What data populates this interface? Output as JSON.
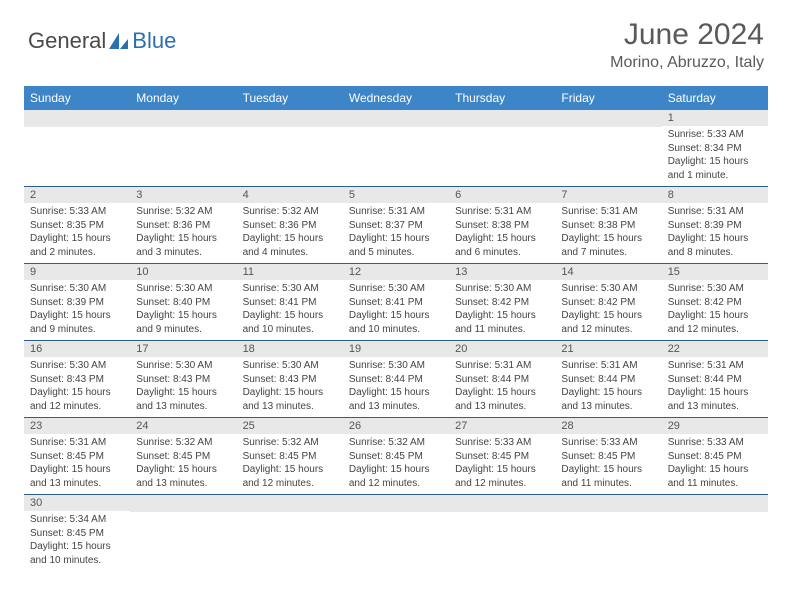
{
  "brand": {
    "part1": "General",
    "part2": "Blue"
  },
  "title": "June 2024",
  "location": "Morino, Abruzzo, Italy",
  "colors": {
    "header_bg": "#3d85c6",
    "header_text": "#ffffff",
    "daynum_bg": "#e8e8e8",
    "row_divider": "#2b5d8f",
    "body_text": "#444444",
    "title_text": "#5a5a5a",
    "logo_gray": "#4a4a4a",
    "logo_blue": "#2b6fb0",
    "sail_fill": "#2b6fb0"
  },
  "day_headers": [
    "Sunday",
    "Monday",
    "Tuesday",
    "Wednesday",
    "Thursday",
    "Friday",
    "Saturday"
  ],
  "weeks": [
    [
      null,
      null,
      null,
      null,
      null,
      null,
      {
        "n": "1",
        "sunrise": "Sunrise: 5:33 AM",
        "sunset": "Sunset: 8:34 PM",
        "daylight": "Daylight: 15 hours and 1 minute."
      }
    ],
    [
      {
        "n": "2",
        "sunrise": "Sunrise: 5:33 AM",
        "sunset": "Sunset: 8:35 PM",
        "daylight": "Daylight: 15 hours and 2 minutes."
      },
      {
        "n": "3",
        "sunrise": "Sunrise: 5:32 AM",
        "sunset": "Sunset: 8:36 PM",
        "daylight": "Daylight: 15 hours and 3 minutes."
      },
      {
        "n": "4",
        "sunrise": "Sunrise: 5:32 AM",
        "sunset": "Sunset: 8:36 PM",
        "daylight": "Daylight: 15 hours and 4 minutes."
      },
      {
        "n": "5",
        "sunrise": "Sunrise: 5:31 AM",
        "sunset": "Sunset: 8:37 PM",
        "daylight": "Daylight: 15 hours and 5 minutes."
      },
      {
        "n": "6",
        "sunrise": "Sunrise: 5:31 AM",
        "sunset": "Sunset: 8:38 PM",
        "daylight": "Daylight: 15 hours and 6 minutes."
      },
      {
        "n": "7",
        "sunrise": "Sunrise: 5:31 AM",
        "sunset": "Sunset: 8:38 PM",
        "daylight": "Daylight: 15 hours and 7 minutes."
      },
      {
        "n": "8",
        "sunrise": "Sunrise: 5:31 AM",
        "sunset": "Sunset: 8:39 PM",
        "daylight": "Daylight: 15 hours and 8 minutes."
      }
    ],
    [
      {
        "n": "9",
        "sunrise": "Sunrise: 5:30 AM",
        "sunset": "Sunset: 8:39 PM",
        "daylight": "Daylight: 15 hours and 9 minutes."
      },
      {
        "n": "10",
        "sunrise": "Sunrise: 5:30 AM",
        "sunset": "Sunset: 8:40 PM",
        "daylight": "Daylight: 15 hours and 9 minutes."
      },
      {
        "n": "11",
        "sunrise": "Sunrise: 5:30 AM",
        "sunset": "Sunset: 8:41 PM",
        "daylight": "Daylight: 15 hours and 10 minutes."
      },
      {
        "n": "12",
        "sunrise": "Sunrise: 5:30 AM",
        "sunset": "Sunset: 8:41 PM",
        "daylight": "Daylight: 15 hours and 10 minutes."
      },
      {
        "n": "13",
        "sunrise": "Sunrise: 5:30 AM",
        "sunset": "Sunset: 8:42 PM",
        "daylight": "Daylight: 15 hours and 11 minutes."
      },
      {
        "n": "14",
        "sunrise": "Sunrise: 5:30 AM",
        "sunset": "Sunset: 8:42 PM",
        "daylight": "Daylight: 15 hours and 12 minutes."
      },
      {
        "n": "15",
        "sunrise": "Sunrise: 5:30 AM",
        "sunset": "Sunset: 8:42 PM",
        "daylight": "Daylight: 15 hours and 12 minutes."
      }
    ],
    [
      {
        "n": "16",
        "sunrise": "Sunrise: 5:30 AM",
        "sunset": "Sunset: 8:43 PM",
        "daylight": "Daylight: 15 hours and 12 minutes."
      },
      {
        "n": "17",
        "sunrise": "Sunrise: 5:30 AM",
        "sunset": "Sunset: 8:43 PM",
        "daylight": "Daylight: 15 hours and 13 minutes."
      },
      {
        "n": "18",
        "sunrise": "Sunrise: 5:30 AM",
        "sunset": "Sunset: 8:43 PM",
        "daylight": "Daylight: 15 hours and 13 minutes."
      },
      {
        "n": "19",
        "sunrise": "Sunrise: 5:30 AM",
        "sunset": "Sunset: 8:44 PM",
        "daylight": "Daylight: 15 hours and 13 minutes."
      },
      {
        "n": "20",
        "sunrise": "Sunrise: 5:31 AM",
        "sunset": "Sunset: 8:44 PM",
        "daylight": "Daylight: 15 hours and 13 minutes."
      },
      {
        "n": "21",
        "sunrise": "Sunrise: 5:31 AM",
        "sunset": "Sunset: 8:44 PM",
        "daylight": "Daylight: 15 hours and 13 minutes."
      },
      {
        "n": "22",
        "sunrise": "Sunrise: 5:31 AM",
        "sunset": "Sunset: 8:44 PM",
        "daylight": "Daylight: 15 hours and 13 minutes."
      }
    ],
    [
      {
        "n": "23",
        "sunrise": "Sunrise: 5:31 AM",
        "sunset": "Sunset: 8:45 PM",
        "daylight": "Daylight: 15 hours and 13 minutes."
      },
      {
        "n": "24",
        "sunrise": "Sunrise: 5:32 AM",
        "sunset": "Sunset: 8:45 PM",
        "daylight": "Daylight: 15 hours and 13 minutes."
      },
      {
        "n": "25",
        "sunrise": "Sunrise: 5:32 AM",
        "sunset": "Sunset: 8:45 PM",
        "daylight": "Daylight: 15 hours and 12 minutes."
      },
      {
        "n": "26",
        "sunrise": "Sunrise: 5:32 AM",
        "sunset": "Sunset: 8:45 PM",
        "daylight": "Daylight: 15 hours and 12 minutes."
      },
      {
        "n": "27",
        "sunrise": "Sunrise: 5:33 AM",
        "sunset": "Sunset: 8:45 PM",
        "daylight": "Daylight: 15 hours and 12 minutes."
      },
      {
        "n": "28",
        "sunrise": "Sunrise: 5:33 AM",
        "sunset": "Sunset: 8:45 PM",
        "daylight": "Daylight: 15 hours and 11 minutes."
      },
      {
        "n": "29",
        "sunrise": "Sunrise: 5:33 AM",
        "sunset": "Sunset: 8:45 PM",
        "daylight": "Daylight: 15 hours and 11 minutes."
      }
    ],
    [
      {
        "n": "30",
        "sunrise": "Sunrise: 5:34 AM",
        "sunset": "Sunset: 8:45 PM",
        "daylight": "Daylight: 15 hours and 10 minutes."
      },
      null,
      null,
      null,
      null,
      null,
      null
    ]
  ]
}
